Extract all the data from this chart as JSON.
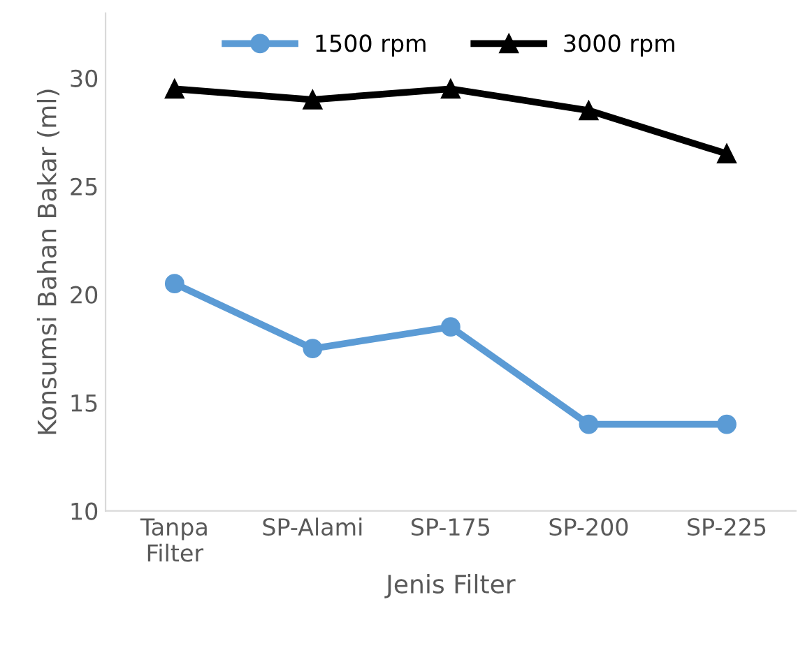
{
  "chart_data": {
    "type": "line",
    "xlabel": "Jenis Filter",
    "ylabel": "Konsumsi Bahan Bakar (ml)",
    "categories": [
      "Tanpa\nFilter",
      "SP-Alami",
      "SP-175",
      "SP-200",
      "SP-225"
    ],
    "series": [
      {
        "name": "1500 rpm",
        "color": "#5b9bd5",
        "marker": "circle",
        "values": [
          20.5,
          17.5,
          18.5,
          14,
          14
        ]
      },
      {
        "name": "3000 rpm",
        "color": "#000000",
        "marker": "triangle",
        "values": [
          29.5,
          29,
          29.5,
          28.5,
          26.5
        ]
      }
    ],
    "ylim": [
      10,
      33
    ],
    "yticks": [
      10,
      15,
      20,
      25,
      30
    ],
    "grid": false,
    "legend": "top",
    "line_style": "solid"
  }
}
